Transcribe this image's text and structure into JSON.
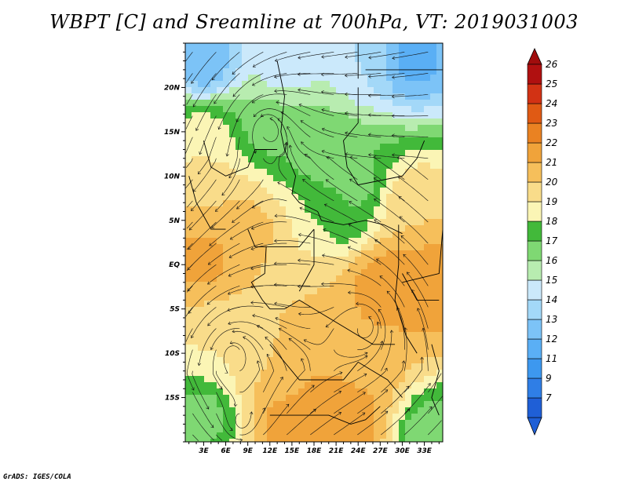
{
  "chart_data": {
    "type": "heatmap",
    "title": "WBPT [C] and Sreamline at 700hPa, VT: 2019031003",
    "variable": "Wet-bulb potential temperature (C) with 700hPa streamlines",
    "x_ticks": [
      "3E",
      "6E",
      "9E",
      "12E",
      "15E",
      "18E",
      "21E",
      "24E",
      "27E",
      "30E",
      "33E"
    ],
    "x_values": [
      3,
      6,
      9,
      12,
      15,
      18,
      21,
      24,
      27,
      30,
      33
    ],
    "y_ticks": [
      "20N",
      "15N",
      "10N",
      "5N",
      "EQ",
      "5S",
      "10S",
      "15S"
    ],
    "y_values": [
      20,
      15,
      10,
      5,
      0,
      -5,
      -10,
      -15
    ],
    "xlim": [
      0.5,
      35.5
    ],
    "ylim": [
      -20,
      25
    ],
    "colorbar": {
      "labels": [
        "7",
        "9",
        "11",
        "12",
        "13",
        "14",
        "15",
        "16",
        "17",
        "18",
        "19",
        "20",
        "21",
        "22",
        "23",
        "24",
        "25",
        "26"
      ],
      "colors": [
        "#1f5fd6",
        "#2f7ee6",
        "#3d98ef",
        "#5aaff5",
        "#7cc3f7",
        "#a3d8f8",
        "#cbe9fb",
        "#b8ecb0",
        "#7fd873",
        "#42b93a",
        "#fbf5b5",
        "#f9dc8a",
        "#f6bf5b",
        "#f0a33a",
        "#ea8222",
        "#e05a14",
        "#d23214",
        "#b01010"
      ],
      "under_color": "#1f5fd6",
      "over_color": "#a00d0d"
    },
    "field_blobs": [
      {
        "lon": 14,
        "lat": 22,
        "value": 15.5
      },
      {
        "lon": 3,
        "lat": 23,
        "value": 13
      },
      {
        "lon": 31,
        "lat": 23,
        "value": 12.5
      },
      {
        "lon": 25,
        "lat": 23,
        "value": 15
      },
      {
        "lon": 12,
        "lat": 16,
        "value": 17.5
      },
      {
        "lon": 19,
        "lat": 13,
        "value": 17.5
      },
      {
        "lon": 24,
        "lat": 9,
        "value": 17.5
      },
      {
        "lon": 22,
        "lat": 5,
        "value": 18
      },
      {
        "lon": 3,
        "lat": 14,
        "value": 20
      },
      {
        "lon": 4,
        "lat": 7,
        "value": 21
      },
      {
        "lon": 9,
        "lat": 4,
        "value": 21.5
      },
      {
        "lon": 3,
        "lat": 1,
        "value": 22.5
      },
      {
        "lon": 31,
        "lat": 7,
        "value": 21
      },
      {
        "lon": 18,
        "lat": 1,
        "value": 20
      },
      {
        "lon": 28,
        "lat": -1,
        "value": 22.5
      },
      {
        "lon": 33,
        "lat": -2,
        "value": 23
      },
      {
        "lon": 26,
        "lat": -3,
        "value": 22.5
      },
      {
        "lon": 20,
        "lat": -6,
        "value": 21.5
      },
      {
        "lon": 6,
        "lat": -9,
        "value": 20
      },
      {
        "lon": 24,
        "lat": -11,
        "value": 21.5
      },
      {
        "lon": 13,
        "lat": -13,
        "value": 21
      },
      {
        "lon": 21,
        "lat": -16,
        "value": 22.5
      },
      {
        "lon": 15,
        "lat": -17,
        "value": 23
      },
      {
        "lon": 22,
        "lat": -17,
        "value": 23
      },
      {
        "lon": 3,
        "lat": -17,
        "value": 17.5
      },
      {
        "lon": 34,
        "lat": -19,
        "value": 17
      }
    ],
    "vortices": [
      {
        "lon": 11.5,
        "lat": 15.5
      },
      {
        "lon": 7,
        "lat": -10
      },
      {
        "lon": 25,
        "lat": -7
      },
      {
        "lon": 8,
        "lat": -18
      }
    ]
  },
  "footer": {
    "credit": "GrADS: IGES/COLA"
  }
}
